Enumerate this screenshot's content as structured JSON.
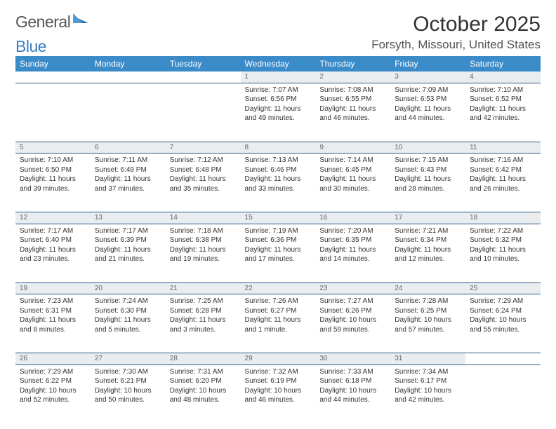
{
  "brand": {
    "word1": "General",
    "word2": "Blue"
  },
  "title": "October 2025",
  "location": "Forsyth, Missouri, United States",
  "colors": {
    "header_bg": "#3b8bc9",
    "header_text": "#ffffff",
    "daynum_bg": "#e9edf0",
    "rule": "#2c5a85",
    "body_text": "#333333",
    "brand_gray": "#555555",
    "brand_blue": "#3b7fbf"
  },
  "day_headers": [
    "Sunday",
    "Monday",
    "Tuesday",
    "Wednesday",
    "Thursday",
    "Friday",
    "Saturday"
  ],
  "weeks": [
    {
      "nums": [
        "",
        "",
        "",
        "1",
        "2",
        "3",
        "4"
      ],
      "cells": [
        null,
        null,
        null,
        {
          "sunrise": "7:07 AM",
          "sunset": "6:56 PM",
          "daylight": "11 hours and 49 minutes."
        },
        {
          "sunrise": "7:08 AM",
          "sunset": "6:55 PM",
          "daylight": "11 hours and 46 minutes."
        },
        {
          "sunrise": "7:09 AM",
          "sunset": "6:53 PM",
          "daylight": "11 hours and 44 minutes."
        },
        {
          "sunrise": "7:10 AM",
          "sunset": "6:52 PM",
          "daylight": "11 hours and 42 minutes."
        }
      ]
    },
    {
      "nums": [
        "5",
        "6",
        "7",
        "8",
        "9",
        "10",
        "11"
      ],
      "cells": [
        {
          "sunrise": "7:10 AM",
          "sunset": "6:50 PM",
          "daylight": "11 hours and 39 minutes."
        },
        {
          "sunrise": "7:11 AM",
          "sunset": "6:49 PM",
          "daylight": "11 hours and 37 minutes."
        },
        {
          "sunrise": "7:12 AM",
          "sunset": "6:48 PM",
          "daylight": "11 hours and 35 minutes."
        },
        {
          "sunrise": "7:13 AM",
          "sunset": "6:46 PM",
          "daylight": "11 hours and 33 minutes."
        },
        {
          "sunrise": "7:14 AM",
          "sunset": "6:45 PM",
          "daylight": "11 hours and 30 minutes."
        },
        {
          "sunrise": "7:15 AM",
          "sunset": "6:43 PM",
          "daylight": "11 hours and 28 minutes."
        },
        {
          "sunrise": "7:16 AM",
          "sunset": "6:42 PM",
          "daylight": "11 hours and 26 minutes."
        }
      ]
    },
    {
      "nums": [
        "12",
        "13",
        "14",
        "15",
        "16",
        "17",
        "18"
      ],
      "cells": [
        {
          "sunrise": "7:17 AM",
          "sunset": "6:40 PM",
          "daylight": "11 hours and 23 minutes."
        },
        {
          "sunrise": "7:17 AM",
          "sunset": "6:39 PM",
          "daylight": "11 hours and 21 minutes."
        },
        {
          "sunrise": "7:18 AM",
          "sunset": "6:38 PM",
          "daylight": "11 hours and 19 minutes."
        },
        {
          "sunrise": "7:19 AM",
          "sunset": "6:36 PM",
          "daylight": "11 hours and 17 minutes."
        },
        {
          "sunrise": "7:20 AM",
          "sunset": "6:35 PM",
          "daylight": "11 hours and 14 minutes."
        },
        {
          "sunrise": "7:21 AM",
          "sunset": "6:34 PM",
          "daylight": "11 hours and 12 minutes."
        },
        {
          "sunrise": "7:22 AM",
          "sunset": "6:32 PM",
          "daylight": "11 hours and 10 minutes."
        }
      ]
    },
    {
      "nums": [
        "19",
        "20",
        "21",
        "22",
        "23",
        "24",
        "25"
      ],
      "cells": [
        {
          "sunrise": "7:23 AM",
          "sunset": "6:31 PM",
          "daylight": "11 hours and 8 minutes."
        },
        {
          "sunrise": "7:24 AM",
          "sunset": "6:30 PM",
          "daylight": "11 hours and 5 minutes."
        },
        {
          "sunrise": "7:25 AM",
          "sunset": "6:28 PM",
          "daylight": "11 hours and 3 minutes."
        },
        {
          "sunrise": "7:26 AM",
          "sunset": "6:27 PM",
          "daylight": "11 hours and 1 minute."
        },
        {
          "sunrise": "7:27 AM",
          "sunset": "6:26 PM",
          "daylight": "10 hours and 59 minutes."
        },
        {
          "sunrise": "7:28 AM",
          "sunset": "6:25 PM",
          "daylight": "10 hours and 57 minutes."
        },
        {
          "sunrise": "7:29 AM",
          "sunset": "6:24 PM",
          "daylight": "10 hours and 55 minutes."
        }
      ]
    },
    {
      "nums": [
        "26",
        "27",
        "28",
        "29",
        "30",
        "31",
        ""
      ],
      "cells": [
        {
          "sunrise": "7:29 AM",
          "sunset": "6:22 PM",
          "daylight": "10 hours and 52 minutes."
        },
        {
          "sunrise": "7:30 AM",
          "sunset": "6:21 PM",
          "daylight": "10 hours and 50 minutes."
        },
        {
          "sunrise": "7:31 AM",
          "sunset": "6:20 PM",
          "daylight": "10 hours and 48 minutes."
        },
        {
          "sunrise": "7:32 AM",
          "sunset": "6:19 PM",
          "daylight": "10 hours and 46 minutes."
        },
        {
          "sunrise": "7:33 AM",
          "sunset": "6:18 PM",
          "daylight": "10 hours and 44 minutes."
        },
        {
          "sunrise": "7:34 AM",
          "sunset": "6:17 PM",
          "daylight": "10 hours and 42 minutes."
        },
        null
      ]
    }
  ],
  "labels": {
    "sunrise": "Sunrise:",
    "sunset": "Sunset:",
    "daylight": "Daylight:"
  }
}
